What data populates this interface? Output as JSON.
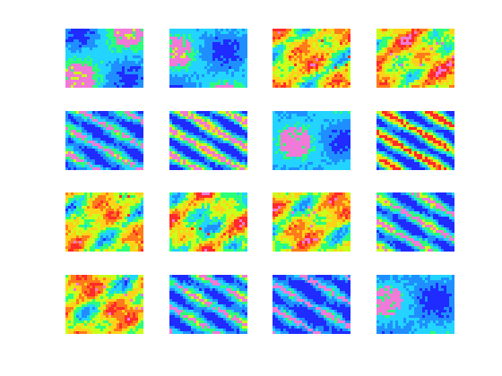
{
  "chart_data": {
    "type": "heatmap",
    "grid": {
      "rows": 4,
      "cols": 4
    },
    "axes_visible": false,
    "colormap": [
      "#1f2bff",
      "#1f8fff",
      "#22d4ff",
      "#2cff7a",
      "#c9ff1a",
      "#ffd21a",
      "#ff7a1a",
      "#ff2a2a",
      "#f07ad8"
    ],
    "panels": [
      {
        "row": 0,
        "col": 0,
        "pattern": "patchy",
        "mean": 0.28,
        "spread": 0.22,
        "accent": 0.92
      },
      {
        "row": 0,
        "col": 1,
        "pattern": "patchy",
        "mean": 0.25,
        "spread": 0.2,
        "accent": 0.95
      },
      {
        "row": 0,
        "col": 2,
        "pattern": "warm",
        "mean": 0.55,
        "spread": 0.25,
        "accent": 0.8
      },
      {
        "row": 0,
        "col": 3,
        "pattern": "warm",
        "mean": 0.58,
        "spread": 0.25,
        "accent": 0.9
      },
      {
        "row": 1,
        "col": 0,
        "pattern": "bands",
        "mean": 0.22,
        "spread": 0.18,
        "accent": 0.95
      },
      {
        "row": 1,
        "col": 1,
        "pattern": "bands",
        "mean": 0.3,
        "spread": 0.3,
        "accent": 0.9
      },
      {
        "row": 1,
        "col": 2,
        "pattern": "patchy",
        "mean": 0.25,
        "spread": 0.18,
        "accent": 0.95
      },
      {
        "row": 1,
        "col": 3,
        "pattern": "bands",
        "mean": 0.32,
        "spread": 0.3,
        "accent": 0.88
      },
      {
        "row": 2,
        "col": 0,
        "pattern": "warm",
        "mean": 0.52,
        "spread": 0.25,
        "accent": 0.78
      },
      {
        "row": 2,
        "col": 1,
        "pattern": "warm",
        "mean": 0.5,
        "spread": 0.28,
        "accent": 0.85
      },
      {
        "row": 2,
        "col": 2,
        "pattern": "warm",
        "mean": 0.55,
        "spread": 0.27,
        "accent": 0.9
      },
      {
        "row": 2,
        "col": 3,
        "pattern": "bands",
        "mean": 0.25,
        "spread": 0.22,
        "accent": 0.95
      },
      {
        "row": 3,
        "col": 0,
        "pattern": "warm",
        "mean": 0.55,
        "spread": 0.28,
        "accent": 0.92
      },
      {
        "row": 3,
        "col": 1,
        "pattern": "bands",
        "mean": 0.24,
        "spread": 0.2,
        "accent": 0.95
      },
      {
        "row": 3,
        "col": 2,
        "pattern": "bands",
        "mean": 0.15,
        "spread": 0.15,
        "accent": 0.95
      },
      {
        "row": 3,
        "col": 3,
        "pattern": "patchy",
        "mean": 0.22,
        "spread": 0.18,
        "accent": 0.95
      }
    ]
  }
}
